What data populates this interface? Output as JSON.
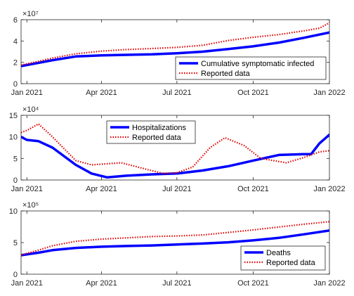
{
  "chart_data": [
    {
      "type": "line",
      "exponent_label": "×10⁷",
      "ylim": [
        0,
        6
      ],
      "yticks": [
        0,
        2,
        4,
        6
      ],
      "xlim": [
        "2020-12-25",
        "2022-01-01"
      ],
      "xticks": [
        "2021-01-01",
        "2021-04-01",
        "2021-07-01",
        "2021-10-01",
        "2022-01-01"
      ],
      "xtick_labels": [
        "Jan 2021",
        "Apr 2021",
        "Jul 2021",
        "Oct 2021",
        "Jan 2022"
      ],
      "legend_position": "bottom-right",
      "grid": false,
      "series": [
        {
          "name": "Cumulative symptomatic infected",
          "color": "#0000ff",
          "style": "solid",
          "points": [
            [
              "2020-12-25",
              1.65
            ],
            [
              "2021-01-15",
              1.95
            ],
            [
              "2021-02-01",
              2.2
            ],
            [
              "2021-03-01",
              2.55
            ],
            [
              "2021-04-01",
              2.65
            ],
            [
              "2021-05-01",
              2.7
            ],
            [
              "2021-06-01",
              2.75
            ],
            [
              "2021-07-01",
              2.85
            ],
            [
              "2021-08-01",
              3.0
            ],
            [
              "2021-09-01",
              3.25
            ],
            [
              "2021-10-01",
              3.5
            ],
            [
              "2021-11-01",
              3.85
            ],
            [
              "2021-12-01",
              4.3
            ],
            [
              "2022-01-01",
              4.8
            ]
          ]
        },
        {
          "name": "Reported data",
          "color": "#e00000",
          "style": "dotted",
          "points": [
            [
              "2020-12-25",
              1.75
            ],
            [
              "2021-01-15",
              2.1
            ],
            [
              "2021-02-01",
              2.4
            ],
            [
              "2021-03-01",
              2.8
            ],
            [
              "2021-04-01",
              3.05
            ],
            [
              "2021-05-01",
              3.2
            ],
            [
              "2021-06-01",
              3.3
            ],
            [
              "2021-07-01",
              3.4
            ],
            [
              "2021-08-01",
              3.6
            ],
            [
              "2021-09-01",
              4.05
            ],
            [
              "2021-10-01",
              4.35
            ],
            [
              "2021-11-01",
              4.6
            ],
            [
              "2021-12-01",
              4.95
            ],
            [
              "2021-12-20",
              5.2
            ],
            [
              "2022-01-01",
              5.7
            ]
          ]
        }
      ]
    },
    {
      "type": "line",
      "exponent_label": "×10⁴",
      "ylim": [
        0,
        15
      ],
      "yticks": [
        0,
        5,
        10,
        15
      ],
      "xlim": [
        "2020-12-25",
        "2022-01-01"
      ],
      "xticks": [
        "2021-01-01",
        "2021-04-01",
        "2021-07-01",
        "2021-10-01",
        "2022-01-01"
      ],
      "xtick_labels": [
        "Jan 2021",
        "Apr 2021",
        "Jul 2021",
        "Oct 2021",
        "Jan 2022"
      ],
      "legend_position": "top-center",
      "grid": false,
      "series": [
        {
          "name": "Hospitalizations",
          "color": "#0000ff",
          "style": "solid",
          "points": [
            [
              "2020-12-25",
              10.0
            ],
            [
              "2021-01-01",
              9.3
            ],
            [
              "2021-01-15",
              9.0
            ],
            [
              "2021-02-01",
              7.5
            ],
            [
              "2021-03-01",
              3.5
            ],
            [
              "2021-03-20",
              1.5
            ],
            [
              "2021-04-08",
              0.6
            ],
            [
              "2021-05-01",
              1.0
            ],
            [
              "2021-06-01",
              1.3
            ],
            [
              "2021-07-01",
              1.5
            ],
            [
              "2021-08-01",
              2.2
            ],
            [
              "2021-09-01",
              3.2
            ],
            [
              "2021-10-01",
              4.5
            ],
            [
              "2021-11-01",
              5.8
            ],
            [
              "2021-12-01",
              6.0
            ],
            [
              "2021-12-10",
              6.0
            ],
            [
              "2021-12-20",
              8.5
            ],
            [
              "2022-01-01",
              10.5
            ]
          ]
        },
        {
          "name": "Reported data",
          "color": "#e00000",
          "style": "dotted",
          "points": [
            [
              "2020-12-25",
              11.0
            ],
            [
              "2021-01-01",
              11.5
            ],
            [
              "2021-01-15",
              13.0
            ],
            [
              "2021-02-01",
              10.0
            ],
            [
              "2021-03-01",
              4.5
            ],
            [
              "2021-03-20",
              3.5
            ],
            [
              "2021-04-25",
              4.0
            ],
            [
              "2021-05-25",
              2.5
            ],
            [
              "2021-06-15",
              1.5
            ],
            [
              "2021-07-01",
              1.7
            ],
            [
              "2021-07-20",
              3.0
            ],
            [
              "2021-08-10",
              7.5
            ],
            [
              "2021-08-28",
              9.8
            ],
            [
              "2021-09-20",
              8.0
            ],
            [
              "2021-10-10",
              5.0
            ],
            [
              "2021-11-10",
              4.0
            ],
            [
              "2021-12-01",
              5.2
            ],
            [
              "2021-12-20",
              6.5
            ],
            [
              "2022-01-01",
              6.8
            ]
          ]
        }
      ]
    },
    {
      "type": "line",
      "exponent_label": "×10⁵",
      "ylim": [
        0,
        10
      ],
      "yticks": [
        0,
        5,
        10
      ],
      "xlim": [
        "2020-12-25",
        "2022-01-01"
      ],
      "xticks": [
        "2021-01-01",
        "2021-04-01",
        "2021-07-01",
        "2021-10-01",
        "2022-01-01"
      ],
      "xtick_labels": [
        "Jan 2021",
        "Apr 2021",
        "Jul 2021",
        "Oct 2021",
        "Jan 2022"
      ],
      "legend_position": "bottom-right",
      "grid": false,
      "series": [
        {
          "name": "Deaths",
          "color": "#0000ff",
          "style": "solid",
          "points": [
            [
              "2020-12-25",
              3.0
            ],
            [
              "2021-01-15",
              3.4
            ],
            [
              "2021-02-01",
              3.8
            ],
            [
              "2021-03-01",
              4.15
            ],
            [
              "2021-04-01",
              4.35
            ],
            [
              "2021-05-01",
              4.45
            ],
            [
              "2021-06-01",
              4.55
            ],
            [
              "2021-07-01",
              4.7
            ],
            [
              "2021-08-01",
              4.85
            ],
            [
              "2021-09-01",
              5.05
            ],
            [
              "2021-10-01",
              5.35
            ],
            [
              "2021-11-01",
              5.75
            ],
            [
              "2021-12-01",
              6.3
            ],
            [
              "2022-01-01",
              6.9
            ]
          ]
        },
        {
          "name": "Reported data",
          "color": "#e00000",
          "style": "dotted",
          "points": [
            [
              "2020-12-25",
              3.05
            ],
            [
              "2021-01-15",
              3.8
            ],
            [
              "2021-02-01",
              4.5
            ],
            [
              "2021-03-01",
              5.2
            ],
            [
              "2021-04-01",
              5.55
            ],
            [
              "2021-05-01",
              5.75
            ],
            [
              "2021-06-01",
              5.95
            ],
            [
              "2021-07-01",
              6.05
            ],
            [
              "2021-08-01",
              6.2
            ],
            [
              "2021-09-01",
              6.6
            ],
            [
              "2021-10-01",
              7.0
            ],
            [
              "2021-11-01",
              7.45
            ],
            [
              "2021-12-01",
              7.9
            ],
            [
              "2022-01-01",
              8.3
            ]
          ]
        }
      ]
    }
  ]
}
